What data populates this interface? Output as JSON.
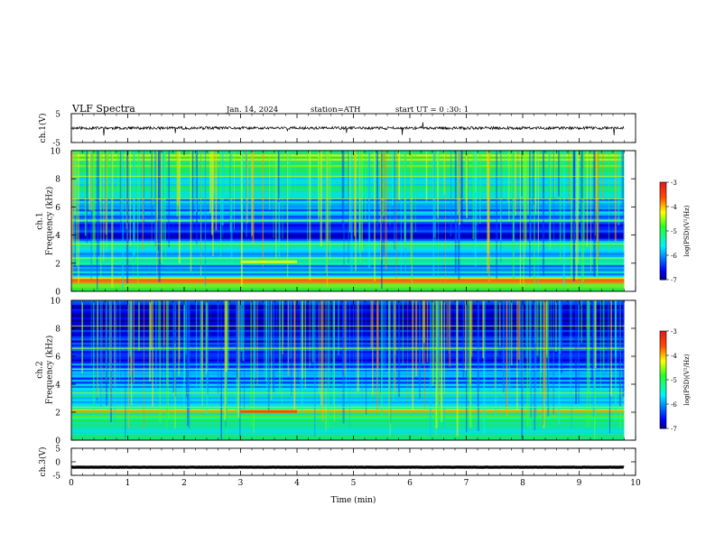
{
  "header": {
    "title": "VLF Spectra",
    "date": "Jan. 14, 2024",
    "station": "station=ATH",
    "start_ut": "start UT =   0 :30: 1"
  },
  "chart_data": [
    {
      "type": "line",
      "panel": "ch1-waveform",
      "ylabel": "ch.1(V)",
      "ylim": [
        -5,
        5
      ],
      "yticks": [
        "5",
        "-5"
      ],
      "xlim": [
        0,
        10
      ],
      "series": [
        {
          "x_range": [
            0,
            9.8
          ],
          "baseline": 0,
          "noise_amplitude": 0.5,
          "spike_amplitude": 2.5,
          "color": "#000000"
        }
      ]
    },
    {
      "type": "heatmap",
      "panel": "ch1-spectrogram",
      "ylabel": "ch.1\nFrequency (kHz)",
      "ylim": [
        0,
        10
      ],
      "yticks": [
        "0",
        "2",
        "4",
        "6",
        "8",
        "10"
      ],
      "xlim": [
        0,
        10
      ],
      "data_x_end": 9.8,
      "colorbar": {
        "label": "log(PSD)(V²/Hz)",
        "ticks": [
          "-3",
          "-4",
          "-5",
          "-6",
          "-7"
        ],
        "range": [
          -7,
          -3
        ]
      },
      "bands_khz": [
        {
          "from": 0.0,
          "to": 0.6,
          "level": -4.6
        },
        {
          "from": 0.6,
          "to": 1.0,
          "level": -4.0
        },
        {
          "from": 1.0,
          "to": 1.9,
          "level": -5.8
        },
        {
          "from": 1.9,
          "to": 2.3,
          "level": -5.0
        },
        {
          "from": 2.3,
          "to": 3.6,
          "level": -5.6
        },
        {
          "from": 3.6,
          "to": 4.8,
          "level": -6.5
        },
        {
          "from": 4.8,
          "to": 6.6,
          "level": -5.9
        },
        {
          "from": 6.6,
          "to": 8.4,
          "level": -5.3
        },
        {
          "from": 8.4,
          "to": 10.0,
          "level": -4.7
        }
      ],
      "features": [
        {
          "type": "tone",
          "freq_khz": 2.1,
          "x_from": 3.0,
          "x_to": 4.0,
          "level": -4.3
        }
      ]
    },
    {
      "type": "heatmap",
      "panel": "ch2-spectrogram",
      "ylabel": "ch.2\nFrequency (kHz)",
      "ylim": [
        0,
        10
      ],
      "yticks": [
        "0",
        "2",
        "4",
        "6",
        "8",
        "10"
      ],
      "xlim": [
        0,
        10
      ],
      "data_x_end": 9.8,
      "colorbar": {
        "label": "log(PSD)(V²/Hz)",
        "ticks": [
          "-3",
          "-4",
          "-5",
          "-6",
          "-7"
        ],
        "range": [
          -7,
          -3
        ]
      },
      "bands_khz": [
        {
          "from": 0.0,
          "to": 0.6,
          "level": -5.0
        },
        {
          "from": 0.6,
          "to": 1.5,
          "level": -5.1
        },
        {
          "from": 1.5,
          "to": 2.0,
          "level": -4.9
        },
        {
          "from": 2.0,
          "to": 2.2,
          "level": -4.1
        },
        {
          "from": 2.2,
          "to": 3.6,
          "level": -5.5
        },
        {
          "from": 3.6,
          "to": 5.2,
          "level": -6.0
        },
        {
          "from": 5.2,
          "to": 7.0,
          "level": -6.3
        },
        {
          "from": 7.0,
          "to": 10.0,
          "level": -6.6
        }
      ],
      "features": [
        {
          "type": "tone",
          "freq_khz": 2.05,
          "x_from": 3.0,
          "x_to": 4.0,
          "level": -3.6
        }
      ]
    },
    {
      "type": "line",
      "panel": "ch3-waveform",
      "ylabel": "ch.3(V)",
      "ylim": [
        -5,
        5
      ],
      "yticks": [
        "5",
        "0",
        "-5"
      ],
      "xlim": [
        0,
        10
      ],
      "xlabel": "Time (min)",
      "xticks": [
        "0",
        "1",
        "2",
        "3",
        "4",
        "5",
        "6",
        "7",
        "8",
        "9",
        "10"
      ],
      "series": [
        {
          "x_range": [
            0,
            9.8
          ],
          "baseline": -2.0,
          "noise_amplitude": 0.05,
          "color": "#000000"
        }
      ]
    }
  ]
}
